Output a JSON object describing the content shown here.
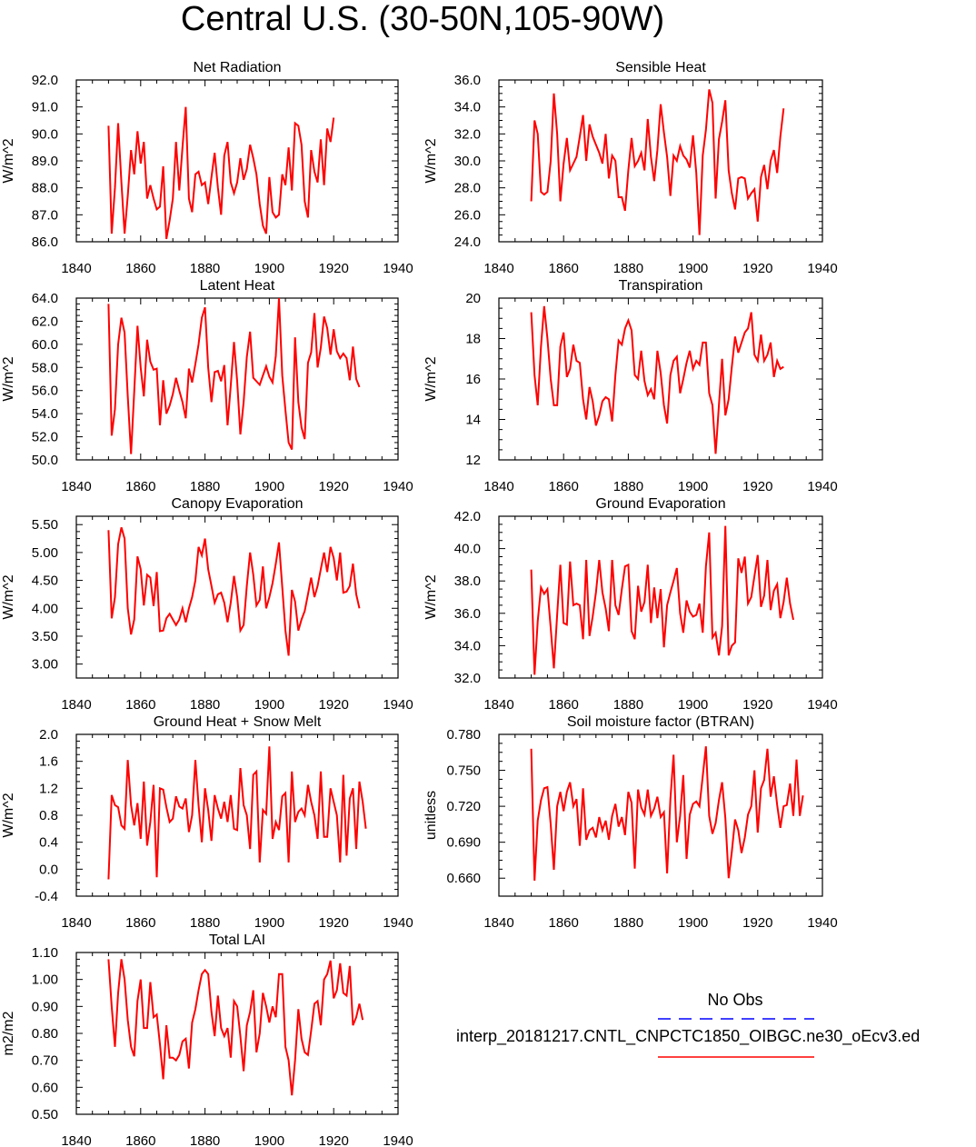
{
  "title": "Central U.S. (30-50N,105-90W)",
  "colors": {
    "series": "#ff0000",
    "obs": "#0000ff",
    "axis": "#000000"
  },
  "legend": {
    "obs_label": "No Obs",
    "run_label": "interp_20181217.CNTL_CNPCTC1850_OIBGC.ne30_oEcv3.ed"
  },
  "chart_data": [
    {
      "type": "line",
      "title": "Net Radiation",
      "ylabel": "W/m^2",
      "xlim": [
        1840,
        1940
      ],
      "xticks": [
        1840,
        1860,
        1880,
        1900,
        1920,
        1940
      ],
      "ylim": [
        86.0,
        92.0
      ],
      "yticks": [
        86.0,
        87.0,
        88.0,
        89.0,
        90.0,
        91.0,
        92.0
      ],
      "ydec": 1,
      "x_start": 1850,
      "series": [
        {
          "name": "interp_20181217.CNTL_CNPCTC1850_OIBGC.ne30_oEcv3.ed",
          "values": [
            90.3,
            86.3,
            88.0,
            90.4,
            88.2,
            86.3,
            87.7,
            89.4,
            88.5,
            90.1,
            88.9,
            89.7,
            87.6,
            88.1,
            87.6,
            87.2,
            87.3,
            88.8,
            86.1,
            86.8,
            87.6,
            89.7,
            87.9,
            89.5,
            91.0,
            87.6,
            87.1,
            88.5,
            88.6,
            88.1,
            88.2,
            87.4,
            88.4,
            89.3,
            88.0,
            87.0,
            89.2,
            89.7,
            88.2,
            87.8,
            88.2,
            89.1,
            88.3,
            88.7,
            89.6,
            89.1,
            88.5,
            87.4,
            86.6,
            86.3,
            88.4,
            87.1,
            86.9,
            87.0,
            88.5,
            88.1,
            89.5,
            87.9,
            90.4,
            90.3,
            89.6,
            87.5,
            86.9,
            89.4,
            88.6,
            88.2,
            89.8,
            88.1,
            90.2,
            89.7,
            90.6
          ]
        }
      ]
    },
    {
      "type": "line",
      "title": "Sensible Heat",
      "ylabel": "W/m^2",
      "xlim": [
        1840,
        1940
      ],
      "xticks": [
        1840,
        1860,
        1880,
        1900,
        1920,
        1940
      ],
      "ylim": [
        24.0,
        36.0
      ],
      "yticks": [
        24.0,
        26.0,
        28.0,
        30.0,
        32.0,
        34.0,
        36.0
      ],
      "ydec": 1,
      "x_start": 1850,
      "series": [
        {
          "name": "interp_20181217.CNTL_CNPCTC1850_OIBGC.ne30_oEcv3.ed",
          "values": [
            27.0,
            33.0,
            32.0,
            27.7,
            27.5,
            27.7,
            30.0,
            35.0,
            32.0,
            27.0,
            29.8,
            31.7,
            29.3,
            29.8,
            30.3,
            31.8,
            33.4,
            30.0,
            32.7,
            31.8,
            31.2,
            30.6,
            29.8,
            32.0,
            28.7,
            30.4,
            30.0,
            27.3,
            27.3,
            26.3,
            29.3,
            31.7,
            29.6,
            30.0,
            30.6,
            29.3,
            33.1,
            30.3,
            28.5,
            30.8,
            34.2,
            32.1,
            30.3,
            27.4,
            30.4,
            30.0,
            31.1,
            30.4,
            30.1,
            29.5,
            31.9,
            29.1,
            24.5,
            30.4,
            32.3,
            35.3,
            34.3,
            27.2,
            31.6,
            32.9,
            34.5,
            29.3,
            27.6,
            26.4,
            28.7,
            28.8,
            28.7,
            27.2,
            27.6,
            27.9,
            25.5,
            28.8,
            29.7,
            27.9,
            30.0,
            30.8,
            29.1,
            31.8,
            33.9
          ]
        }
      ]
    },
    {
      "type": "line",
      "title": "Latent Heat",
      "ylabel": "W/m^2",
      "xlim": [
        1840,
        1940
      ],
      "xticks": [
        1840,
        1860,
        1880,
        1900,
        1920,
        1940
      ],
      "ylim": [
        50.0,
        64.0
      ],
      "yticks": [
        50.0,
        52.0,
        54.0,
        56.0,
        58.0,
        60.0,
        62.0,
        64.0
      ],
      "ydec": 1,
      "x_start": 1850,
      "series": [
        {
          "name": "interp_20181217.CNTL_CNPCTC1850_OIBGC.ne30_oEcv3.ed",
          "values": [
            63.5,
            52.1,
            54.4,
            60.0,
            62.3,
            61.0,
            55.5,
            50.5,
            55.9,
            61.6,
            58.0,
            55.5,
            60.4,
            58.5,
            57.8,
            57.9,
            53.0,
            56.9,
            54.0,
            54.7,
            55.7,
            57.1,
            56.0,
            55.0,
            53.6,
            57.9,
            56.7,
            58.3,
            60.0,
            62.3,
            63.2,
            58.0,
            55.0,
            57.6,
            57.7,
            56.8,
            58.2,
            53.0,
            56.4,
            60.2,
            56.8,
            52.2,
            55.0,
            58.9,
            61.1,
            57.1,
            56.8,
            56.5,
            57.3,
            58.1,
            57.2,
            56.7,
            59.0,
            64.0,
            57.3,
            54.3,
            51.5,
            50.9,
            60.6,
            55.0,
            52.8,
            51.8,
            58.4,
            59.3,
            62.7,
            58.0,
            59.7,
            62.4,
            61.4,
            59.1,
            61.3,
            59.4,
            58.8,
            59.2,
            58.8,
            56.9,
            59.8,
            57.0,
            56.3
          ]
        }
      ]
    },
    {
      "type": "line",
      "title": "Transpiration",
      "ylabel": "W/m^2",
      "xlim": [
        1840,
        1940
      ],
      "xticks": [
        1840,
        1860,
        1880,
        1900,
        1920,
        1940
      ],
      "ylim": [
        12,
        20
      ],
      "yticks": [
        12,
        14,
        16,
        18,
        20
      ],
      "ydec": 0,
      "x_start": 1850,
      "series": [
        {
          "name": "interp_20181217.CNTL_CNPCTC1850_OIBGC.ne30_oEcv3.ed",
          "values": [
            19.3,
            16.2,
            14.7,
            17.6,
            19.6,
            18.0,
            16.0,
            14.7,
            14.7,
            17.6,
            18.3,
            16.1,
            16.5,
            17.7,
            16.9,
            16.8,
            15.0,
            14.0,
            15.6,
            14.9,
            13.7,
            14.2,
            14.9,
            15.1,
            15.0,
            13.9,
            16.2,
            17.9,
            17.7,
            18.5,
            18.9,
            18.4,
            16.2,
            16.0,
            17.4,
            15.9,
            15.2,
            15.5,
            15.0,
            17.4,
            16.3,
            14.7,
            13.8,
            16.2,
            16.9,
            17.1,
            15.3,
            16.0,
            16.8,
            17.4,
            16.5,
            16.9,
            16.7,
            17.8,
            17.8,
            15.3,
            14.7,
            12.3,
            14.7,
            17.0,
            14.2,
            15.0,
            16.6,
            18.1,
            17.3,
            17.8,
            18.3,
            18.5,
            19.3,
            17.2,
            16.9,
            18.2,
            16.9,
            17.2,
            17.8,
            16.1,
            16.9,
            16.5,
            16.6
          ]
        }
      ]
    },
    {
      "type": "line",
      "title": "Canopy Evaporation",
      "ylabel": "W/m^2",
      "xlim": [
        1840,
        1940
      ],
      "xticks": [
        1840,
        1860,
        1880,
        1900,
        1920,
        1940
      ],
      "ylim": [
        2.75,
        5.65
      ],
      "yticks": [
        3.0,
        3.5,
        4.0,
        4.5,
        5.0,
        5.5
      ],
      "ydec": 2,
      "x_start": 1850,
      "series": [
        {
          "name": "interp_20181217.CNTL_CNPCTC1850_OIBGC.ne30_oEcv3.ed",
          "values": [
            5.4,
            3.82,
            4.2,
            5.15,
            5.45,
            5.25,
            4.0,
            3.53,
            3.8,
            4.93,
            4.7,
            4.05,
            4.6,
            4.55,
            4.04,
            4.65,
            3.59,
            3.6,
            3.82,
            3.9,
            3.8,
            3.7,
            3.8,
            4.0,
            3.75,
            4.0,
            4.2,
            4.5,
            5.1,
            4.95,
            5.25,
            4.7,
            4.4,
            4.1,
            4.25,
            4.28,
            4.1,
            3.75,
            4.1,
            4.58,
            4.2,
            3.6,
            3.7,
            4.4,
            5.0,
            4.6,
            4.05,
            4.15,
            4.75,
            4.0,
            4.2,
            4.45,
            4.8,
            5.18,
            4.38,
            3.6,
            3.15,
            4.33,
            4.12,
            3.6,
            3.8,
            3.95,
            4.25,
            4.55,
            4.2,
            4.4,
            4.7,
            5.0,
            4.65,
            5.1,
            4.9,
            4.5,
            5.0,
            4.28,
            4.3,
            4.4,
            4.8,
            4.25,
            4.0
          ]
        }
      ]
    },
    {
      "type": "line",
      "title": "Ground Evaporation",
      "ylabel": "W/m^2",
      "xlim": [
        1840,
        1940
      ],
      "xticks": [
        1840,
        1860,
        1880,
        1900,
        1920,
        1940
      ],
      "ylim": [
        32.0,
        42.0
      ],
      "yticks": [
        32.0,
        34.0,
        36.0,
        38.0,
        40.0,
        42.0
      ],
      "ydec": 1,
      "x_start": 1850,
      "series": [
        {
          "name": "interp_20181217.CNTL_CNPCTC1850_OIBGC.ne30_oEcv3.ed",
          "values": [
            38.7,
            32.2,
            35.5,
            37.6,
            37.2,
            37.5,
            35.1,
            32.6,
            35.9,
            39.0,
            35.4,
            35.3,
            39.2,
            36.5,
            36.6,
            36.5,
            34.4,
            39.3,
            34.6,
            35.8,
            37.3,
            39.3,
            37.3,
            36.3,
            34.9,
            39.3,
            36.5,
            35.9,
            37.5,
            38.9,
            39.0,
            34.9,
            34.4,
            37.7,
            36.1,
            36.7,
            39.0,
            35.4,
            37.6,
            35.7,
            37.5,
            33.9,
            36.5,
            37.3,
            38.0,
            38.8,
            36.0,
            34.8,
            36.8,
            36.1,
            35.8,
            35.9,
            36.6,
            34.8,
            38.9,
            41.0,
            34.5,
            34.8,
            33.4,
            35.2,
            41.4,
            33.4,
            34.0,
            34.2,
            39.4,
            38.5,
            39.5,
            36.6,
            37.0,
            38.3,
            39.6,
            36.4,
            37.1,
            39.3,
            36.2,
            37.4,
            37.8,
            35.7,
            36.7,
            38.2,
            36.6,
            35.6
          ]
        }
      ]
    },
    {
      "type": "line",
      "title": "Ground Heat + Snow Melt",
      "ylabel": "W/m^2",
      "xlim": [
        1840,
        1940
      ],
      "xticks": [
        1840,
        1860,
        1880,
        1900,
        1920,
        1940
      ],
      "ylim": [
        -0.4,
        2.0
      ],
      "yticks": [
        -0.4,
        0.0,
        0.4,
        0.8,
        1.2,
        1.6,
        2.0
      ],
      "ydec": 1,
      "x_start": 1850,
      "series": [
        {
          "name": "interp_20181217.CNTL_CNPCTC1850_OIBGC.ne30_oEcv3.ed",
          "values": [
            -0.15,
            1.1,
            0.95,
            0.92,
            0.65,
            0.6,
            1.62,
            0.95,
            0.65,
            0.98,
            0.45,
            1.3,
            0.35,
            0.7,
            1.25,
            -0.12,
            1.2,
            1.18,
            0.92,
            0.7,
            0.75,
            1.08,
            0.93,
            0.9,
            1.05,
            0.55,
            0.8,
            1.62,
            0.95,
            0.4,
            1.2,
            0.88,
            0.42,
            1.1,
            0.9,
            0.75,
            1.0,
            0.7,
            1.1,
            0.6,
            0.58,
            1.5,
            0.95,
            0.8,
            0.3,
            1.4,
            1.45,
            0.1,
            0.88,
            0.82,
            1.82,
            0.45,
            0.7,
            0.58,
            1.08,
            1.13,
            0.1,
            1.45,
            0.7,
            0.85,
            0.9,
            0.8,
            1.25,
            1.0,
            0.8,
            0.45,
            1.45,
            0.48,
            0.48,
            1.2,
            1.0,
            0.8,
            0.1,
            1.4,
            0.2,
            1.05,
            1.2,
            0.3,
            1.3,
            1.0,
            0.6
          ]
        }
      ]
    },
    {
      "type": "line",
      "title": "Soil moisture factor (BTRAN)",
      "ylabel": "unitless",
      "xlim": [
        1840,
        1940
      ],
      "xticks": [
        1840,
        1860,
        1880,
        1900,
        1920,
        1940
      ],
      "ylim": [
        0.645,
        0.78
      ],
      "yticks": [
        0.66,
        0.69,
        0.72,
        0.75,
        0.78
      ],
      "ydec": 3,
      "x_start": 1850,
      "series": [
        {
          "name": "interp_20181217.CNTL_CNPCTC1850_OIBGC.ne30_oEcv3.ed",
          "values": [
            0.768,
            0.658,
            0.708,
            0.725,
            0.735,
            0.736,
            0.705,
            0.667,
            0.72,
            0.732,
            0.716,
            0.732,
            0.74,
            0.72,
            0.726,
            0.687,
            0.735,
            0.692,
            0.7,
            0.702,
            0.694,
            0.711,
            0.7,
            0.708,
            0.692,
            0.712,
            0.722,
            0.703,
            0.711,
            0.696,
            0.732,
            0.723,
            0.668,
            0.734,
            0.719,
            0.713,
            0.734,
            0.712,
            0.718,
            0.728,
            0.711,
            0.715,
            0.664,
            0.726,
            0.763,
            0.69,
            0.712,
            0.746,
            0.676,
            0.713,
            0.722,
            0.724,
            0.72,
            0.745,
            0.77,
            0.712,
            0.697,
            0.706,
            0.725,
            0.74,
            0.71,
            0.66,
            0.682,
            0.709,
            0.7,
            0.681,
            0.694,
            0.713,
            0.72,
            0.75,
            0.698,
            0.735,
            0.742,
            0.768,
            0.728,
            0.745,
            0.721,
            0.702,
            0.72,
            0.721,
            0.739,
            0.712,
            0.759,
            0.712,
            0.729
          ]
        }
      ]
    },
    {
      "type": "line",
      "title": "Total LAI",
      "ylabel": "m2/m2",
      "xlim": [
        1840,
        1940
      ],
      "xticks": [
        1840,
        1860,
        1880,
        1900,
        1920,
        1940
      ],
      "ylim": [
        0.5,
        1.1
      ],
      "yticks": [
        0.5,
        0.6,
        0.7,
        0.8,
        0.9,
        1.0,
        1.1
      ],
      "ydec": 2,
      "x_start": 1850,
      "series": [
        {
          "name": "interp_20181217.CNTL_CNPCTC1850_OIBGC.ne30_oEcv3.ed",
          "values": [
            1.075,
            0.9,
            0.75,
            0.95,
            1.075,
            1.0,
            0.85,
            0.75,
            0.715,
            0.92,
            1.0,
            0.82,
            0.82,
            0.99,
            0.86,
            0.87,
            0.76,
            0.63,
            0.83,
            0.71,
            0.71,
            0.7,
            0.72,
            0.77,
            0.78,
            0.67,
            0.84,
            0.89,
            0.96,
            1.02,
            1.035,
            1.02,
            0.88,
            0.79,
            0.94,
            0.82,
            0.79,
            0.82,
            0.71,
            0.92,
            0.9,
            0.79,
            0.66,
            0.83,
            0.88,
            0.96,
            0.73,
            0.8,
            0.95,
            0.9,
            0.84,
            0.9,
            0.86,
            1.02,
            1.02,
            0.75,
            0.7,
            0.57,
            0.7,
            0.89,
            0.78,
            0.73,
            0.72,
            0.81,
            0.91,
            0.92,
            0.83,
            1.0,
            1.02,
            1.07,
            0.93,
            0.96,
            1.06,
            0.95,
            0.94,
            1.05,
            0.83,
            0.86,
            0.91,
            0.85
          ]
        }
      ]
    }
  ]
}
